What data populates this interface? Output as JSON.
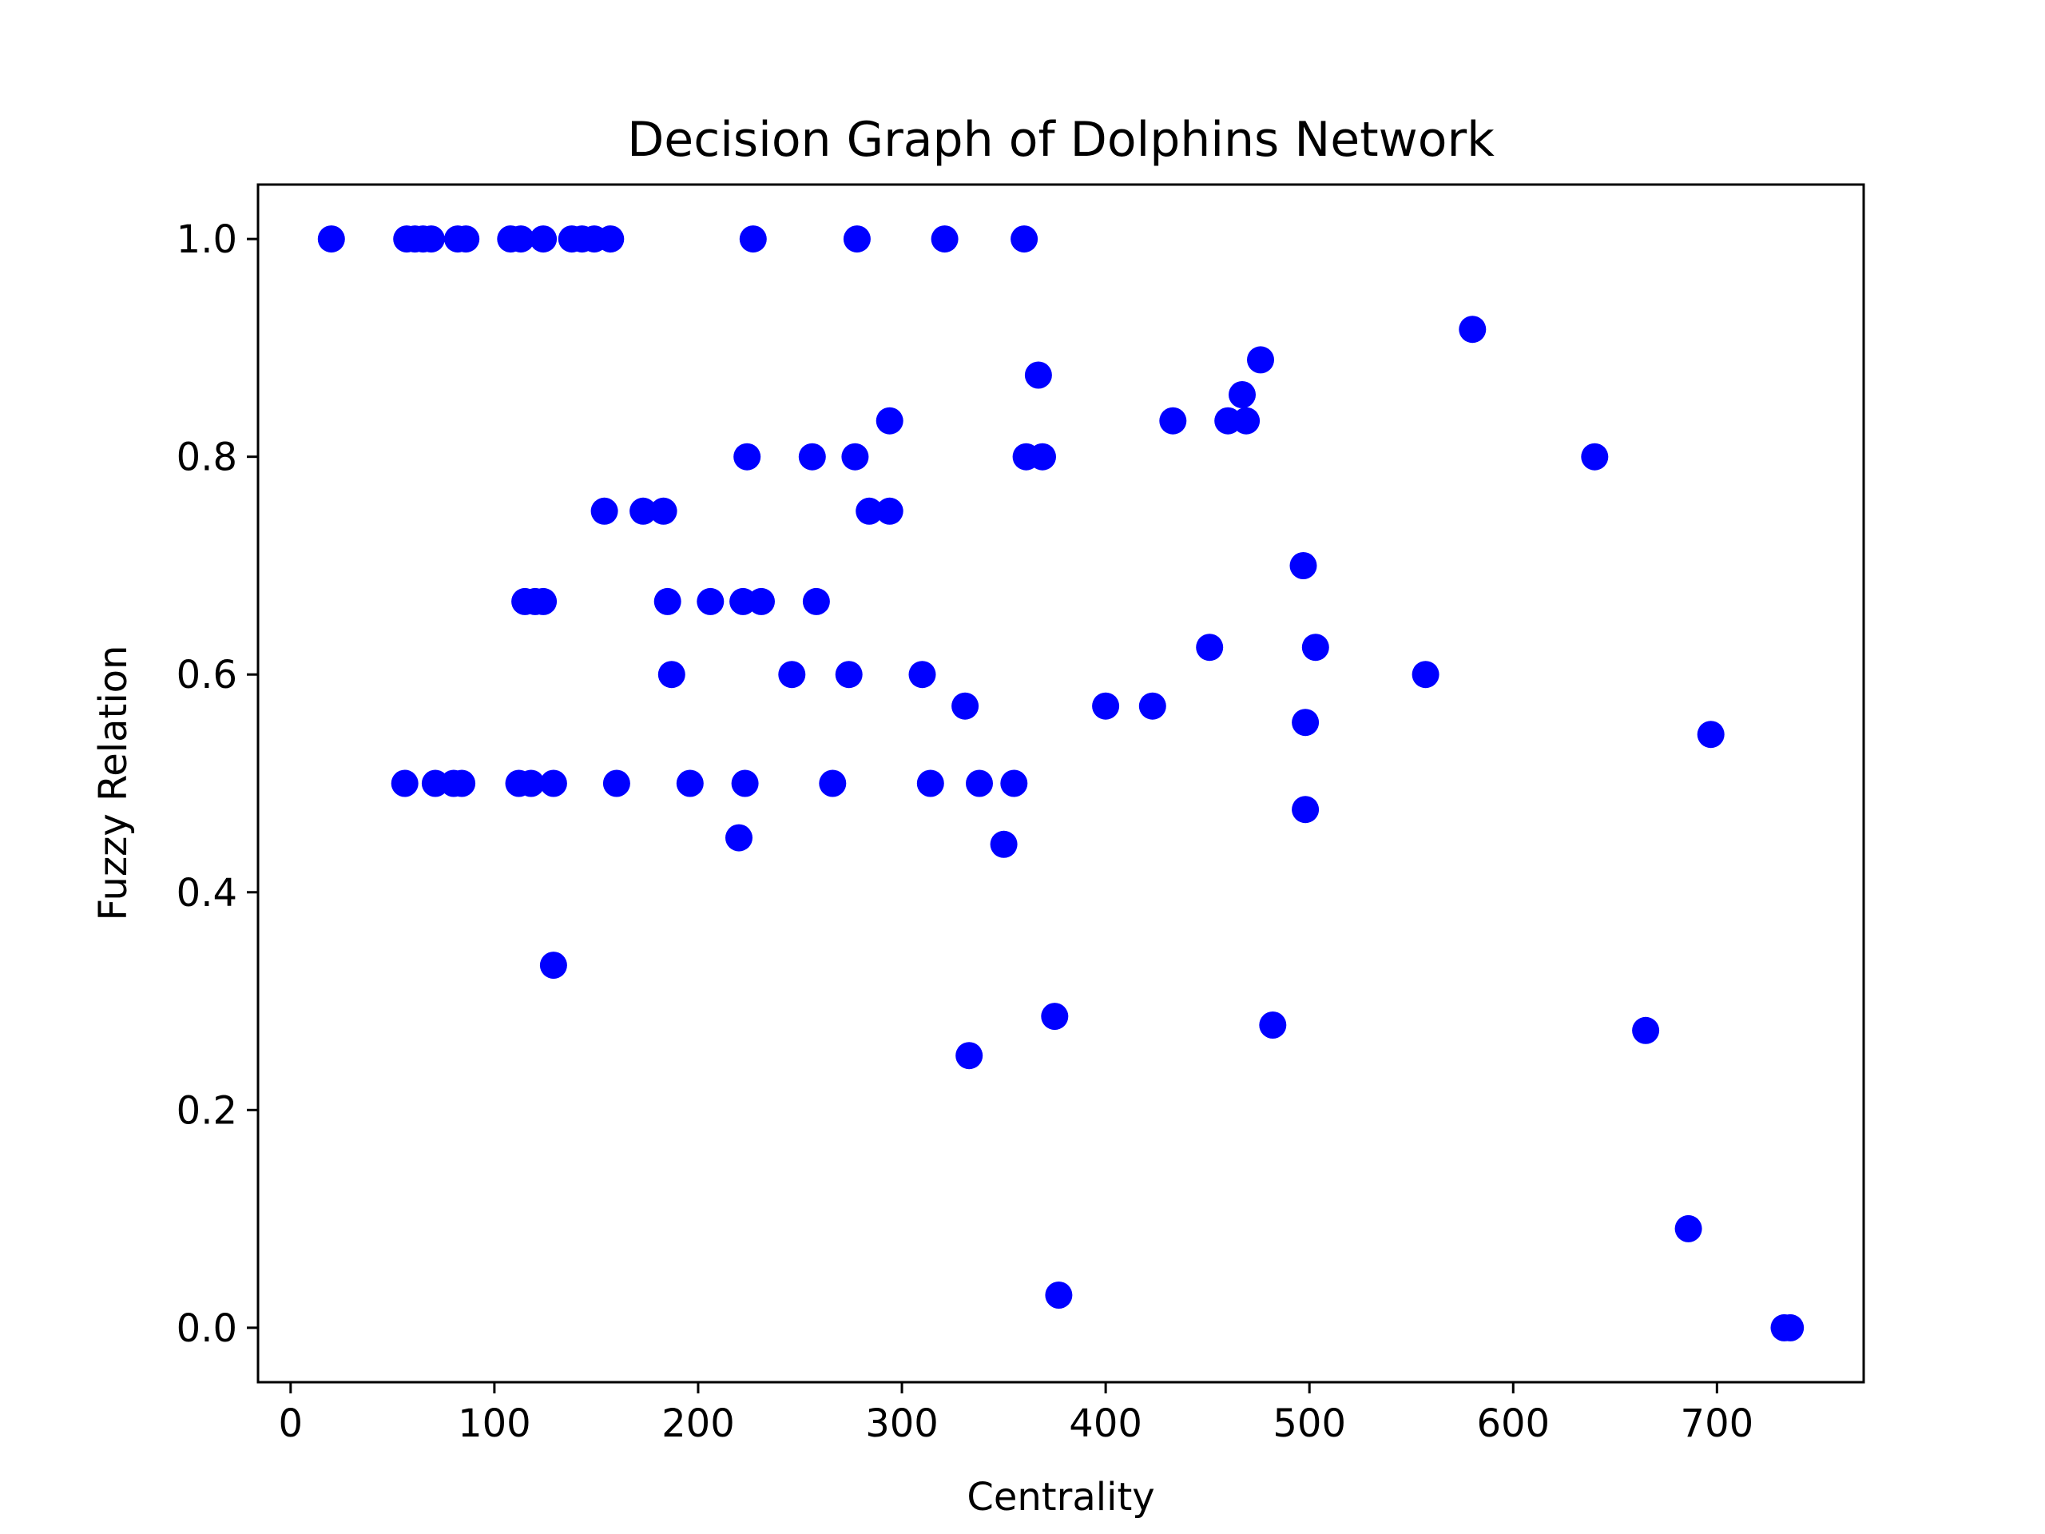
{
  "chart_data": {
    "type": "scatter",
    "title": "Decision Graph of Dolphins Network",
    "xlabel": "Centrality",
    "ylabel": "Fuzzy Relation",
    "xlim": [
      -16,
      772
    ],
    "ylim": [
      -0.05,
      1.05
    ],
    "x_ticks": [
      0,
      100,
      200,
      300,
      400,
      500,
      600,
      700
    ],
    "y_ticks": [
      0.0,
      0.2,
      0.4,
      0.6,
      0.8,
      1.0
    ],
    "x_tick_labels": [
      "0",
      "100",
      "200",
      "300",
      "400",
      "500",
      "600",
      "700"
    ],
    "y_tick_labels": [
      "0.0",
      "0.2",
      "0.4",
      "0.6",
      "0.8",
      "1.0"
    ],
    "grid": false,
    "marker_color": "#0000ff",
    "points": [
      {
        "x": 20,
        "y": 1.0
      },
      {
        "x": 57,
        "y": 1.0
      },
      {
        "x": 61,
        "y": 1.0
      },
      {
        "x": 65,
        "y": 1.0
      },
      {
        "x": 69,
        "y": 1.0
      },
      {
        "x": 82,
        "y": 1.0
      },
      {
        "x": 86,
        "y": 1.0
      },
      {
        "x": 108,
        "y": 1.0
      },
      {
        "x": 113,
        "y": 1.0
      },
      {
        "x": 124,
        "y": 1.0
      },
      {
        "x": 138,
        "y": 1.0
      },
      {
        "x": 143,
        "y": 1.0
      },
      {
        "x": 149,
        "y": 1.0
      },
      {
        "x": 157,
        "y": 1.0
      },
      {
        "x": 227,
        "y": 1.0
      },
      {
        "x": 278,
        "y": 1.0
      },
      {
        "x": 321,
        "y": 1.0
      },
      {
        "x": 360,
        "y": 1.0
      },
      {
        "x": 580,
        "y": 0.917
      },
      {
        "x": 476,
        "y": 0.889
      },
      {
        "x": 367,
        "y": 0.875
      },
      {
        "x": 467,
        "y": 0.857
      },
      {
        "x": 294,
        "y": 0.833
      },
      {
        "x": 433,
        "y": 0.833
      },
      {
        "x": 460,
        "y": 0.833
      },
      {
        "x": 469,
        "y": 0.833
      },
      {
        "x": 224,
        "y": 0.8
      },
      {
        "x": 256,
        "y": 0.8
      },
      {
        "x": 277,
        "y": 0.8
      },
      {
        "x": 361,
        "y": 0.8
      },
      {
        "x": 369,
        "y": 0.8
      },
      {
        "x": 640,
        "y": 0.8
      },
      {
        "x": 154,
        "y": 0.75
      },
      {
        "x": 173,
        "y": 0.75
      },
      {
        "x": 183,
        "y": 0.75
      },
      {
        "x": 284,
        "y": 0.75
      },
      {
        "x": 294,
        "y": 0.75
      },
      {
        "x": 497,
        "y": 0.7
      },
      {
        "x": 115,
        "y": 0.667
      },
      {
        "x": 120,
        "y": 0.667
      },
      {
        "x": 124,
        "y": 0.667
      },
      {
        "x": 185,
        "y": 0.667
      },
      {
        "x": 206,
        "y": 0.667
      },
      {
        "x": 222,
        "y": 0.667
      },
      {
        "x": 231,
        "y": 0.667
      },
      {
        "x": 258,
        "y": 0.667
      },
      {
        "x": 451,
        "y": 0.625
      },
      {
        "x": 503,
        "y": 0.625
      },
      {
        "x": 187,
        "y": 0.6
      },
      {
        "x": 246,
        "y": 0.6
      },
      {
        "x": 274,
        "y": 0.6
      },
      {
        "x": 310,
        "y": 0.6
      },
      {
        "x": 557,
        "y": 0.6
      },
      {
        "x": 331,
        "y": 0.571
      },
      {
        "x": 400,
        "y": 0.571
      },
      {
        "x": 423,
        "y": 0.571
      },
      {
        "x": 498,
        "y": 0.556
      },
      {
        "x": 697,
        "y": 0.545
      },
      {
        "x": 56,
        "y": 0.5
      },
      {
        "x": 71,
        "y": 0.5
      },
      {
        "x": 80,
        "y": 0.5
      },
      {
        "x": 84,
        "y": 0.5
      },
      {
        "x": 112,
        "y": 0.5
      },
      {
        "x": 118,
        "y": 0.5
      },
      {
        "x": 129,
        "y": 0.5
      },
      {
        "x": 160,
        "y": 0.5
      },
      {
        "x": 196,
        "y": 0.5
      },
      {
        "x": 223,
        "y": 0.5
      },
      {
        "x": 266,
        "y": 0.5
      },
      {
        "x": 314,
        "y": 0.5
      },
      {
        "x": 338,
        "y": 0.5
      },
      {
        "x": 355,
        "y": 0.5
      },
      {
        "x": 498,
        "y": 0.476
      },
      {
        "x": 220,
        "y": 0.45
      },
      {
        "x": 350,
        "y": 0.444
      },
      {
        "x": 129,
        "y": 0.333
      },
      {
        "x": 375,
        "y": 0.286
      },
      {
        "x": 482,
        "y": 0.278
      },
      {
        "x": 665,
        "y": 0.273
      },
      {
        "x": 333,
        "y": 0.25
      },
      {
        "x": 686,
        "y": 0.091
      },
      {
        "x": 377,
        "y": 0.03
      },
      {
        "x": 733,
        "y": 0.0
      },
      {
        "x": 736,
        "y": 0.0
      }
    ]
  }
}
